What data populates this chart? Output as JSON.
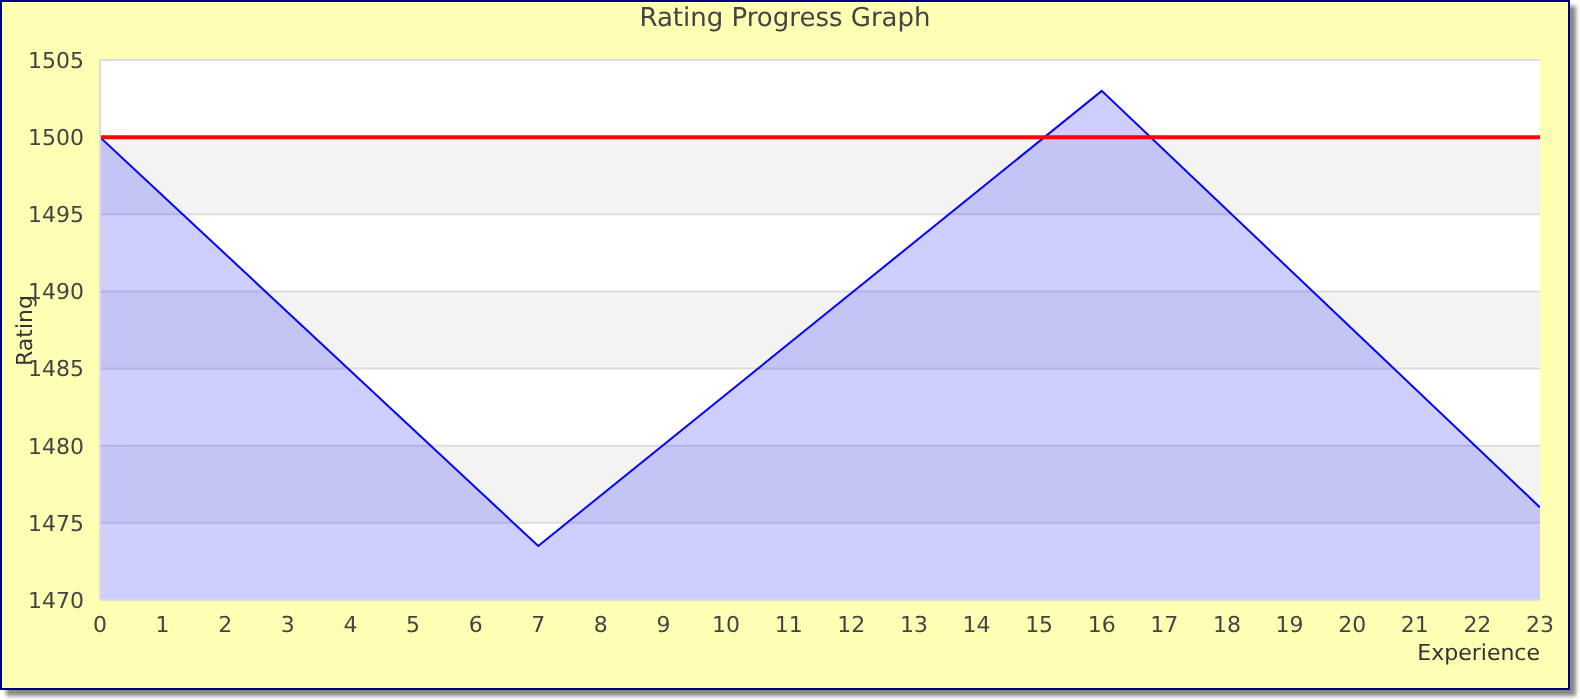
{
  "chart_data": {
    "type": "area",
    "title": "Rating Progress Graph",
    "xlabel": "Experience",
    "ylabel": "Rating",
    "x": [
      0,
      7,
      16,
      23
    ],
    "series": [
      {
        "color": "#0000ff",
        "values": [
          1500,
          1473.5,
          1503,
          1476
        ]
      }
    ],
    "xlim": [
      0,
      23
    ],
    "xticks": [
      0,
      1,
      2,
      3,
      4,
      5,
      6,
      7,
      8,
      9,
      10,
      11,
      12,
      13,
      14,
      15,
      16,
      17,
      18,
      19,
      20,
      21,
      22,
      23
    ],
    "ylim": [
      1470,
      1505
    ],
    "yticks": [
      1470,
      1475,
      1480,
      1485,
      1490,
      1495,
      1500,
      1505
    ],
    "ref_lines": [
      {
        "axis": "y",
        "value": 1500,
        "color": "#ff0000"
      }
    ],
    "grid": "y"
  }
}
